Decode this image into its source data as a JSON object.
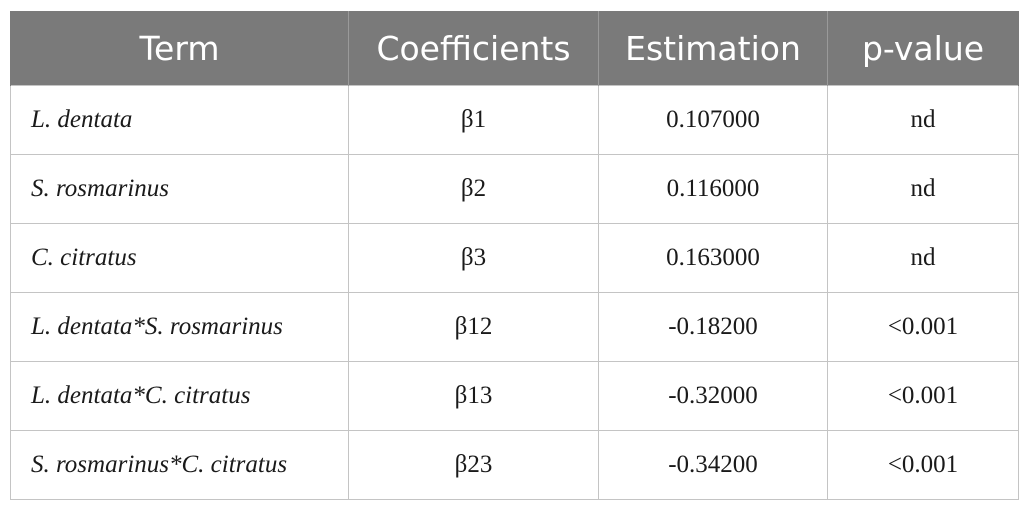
{
  "table": {
    "headers": [
      "Term",
      "Coefficients",
      "Estimation",
      "p-value"
    ],
    "rows": [
      {
        "term": "L. dentata",
        "coefficient": "β1",
        "estimation": "0.107000",
        "p_value": "nd"
      },
      {
        "term": "S. rosmarinus",
        "coefficient": "β2",
        "estimation": "0.116000",
        "p_value": "nd"
      },
      {
        "term": "C. citratus",
        "coefficient": "β3",
        "estimation": "0.163000",
        "p_value": "nd"
      },
      {
        "term": "L. dentata*S. rosmarinus",
        "coefficient": "β12",
        "estimation": "-0.18200",
        "p_value": "<0.001"
      },
      {
        "term": "L. dentata*C. citratus",
        "coefficient": "β13",
        "estimation": "-0.32000",
        "p_value": "<0.001"
      },
      {
        "term": "S. rosmarinus*C. citratus",
        "coefficient": "β23",
        "estimation": "-0.34200",
        "p_value": "<0.001"
      }
    ]
  },
  "colors": {
    "header_background": "#7a7a7a",
    "header_text": "#ffffff",
    "border": "#c4c4c4"
  }
}
